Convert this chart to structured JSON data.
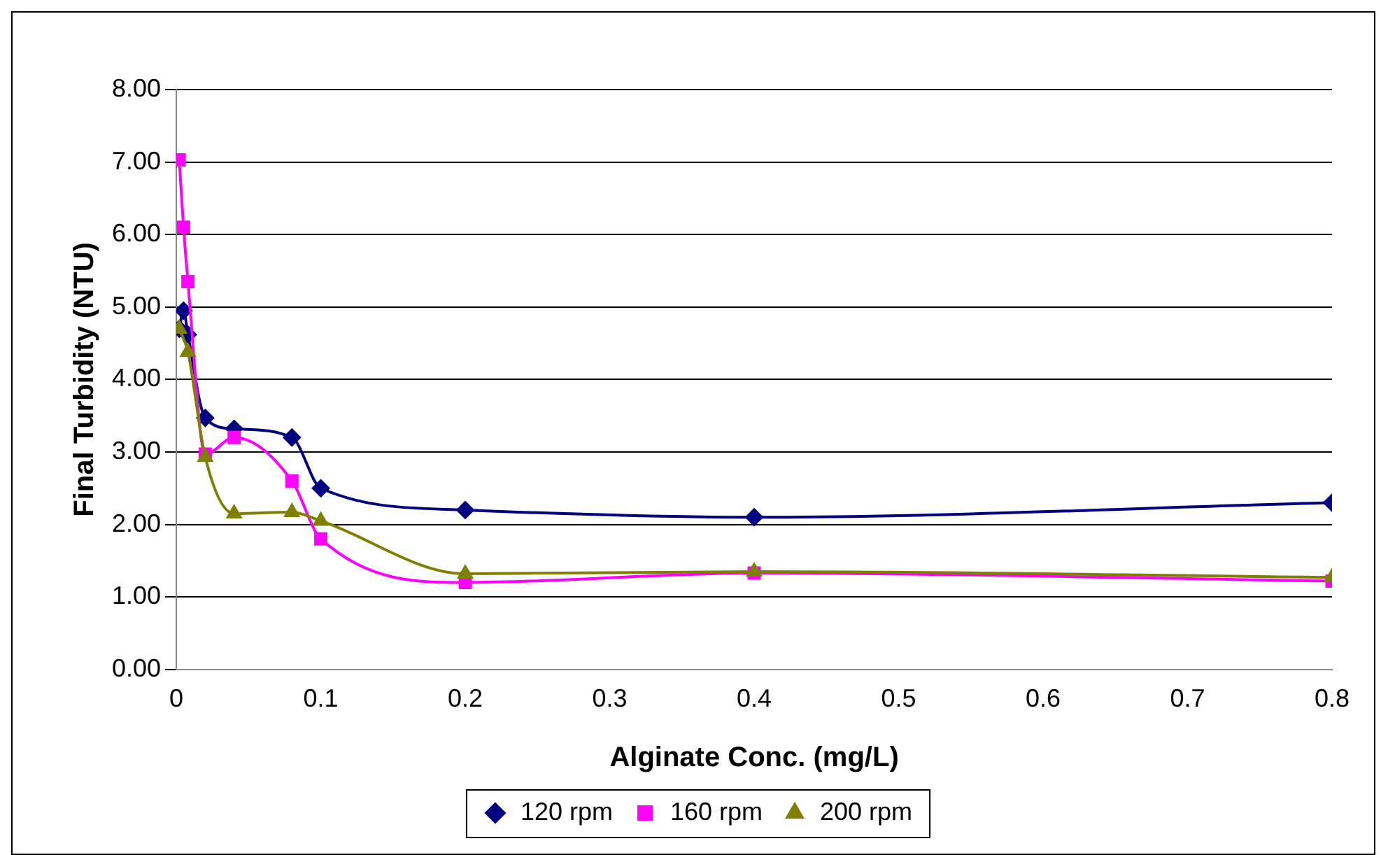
{
  "chart_data": {
    "type": "line",
    "xlabel": "Alginate Conc. (mg/L)",
    "ylabel": "Final Turbidity (NTU)",
    "xlim": [
      0,
      0.8
    ],
    "xticks": [
      0,
      0.1,
      0.2,
      0.3,
      0.4,
      0.5,
      0.6,
      0.7,
      0.8
    ],
    "ylim": [
      0,
      8
    ],
    "yticks": [
      {
        "value": 0,
        "label": "0.00"
      },
      {
        "value": 1,
        "label": "1.00"
      },
      {
        "value": 2,
        "label": "2.00"
      },
      {
        "value": 3,
        "label": "3.00"
      },
      {
        "value": 4,
        "label": "4.00"
      },
      {
        "value": 5,
        "label": "5.00"
      },
      {
        "value": 6,
        "label": "6.00"
      },
      {
        "value": 7,
        "label": "7.00"
      },
      {
        "value": 8,
        "label": "8.00"
      }
    ],
    "grid": "y",
    "legend": "bottom",
    "series": [
      {
        "name": "120 rpm",
        "color": "#000080",
        "marker": "diamond",
        "x": [
          0.002,
          0.005,
          0.008,
          0.02,
          0.04,
          0.08,
          0.1,
          0.2,
          0.4,
          0.8
        ],
        "values": [
          4.7,
          4.95,
          4.62,
          3.47,
          3.32,
          3.2,
          2.5,
          2.2,
          2.1,
          2.3
        ]
      },
      {
        "name": "160 rpm",
        "color": "#ff00ff",
        "marker": "square",
        "x": [
          0.002,
          0.005,
          0.008,
          0.02,
          0.04,
          0.08,
          0.1,
          0.2,
          0.4,
          0.8
        ],
        "values": [
          7.03,
          6.1,
          5.35,
          2.97,
          3.2,
          2.6,
          1.8,
          1.2,
          1.33,
          1.22
        ]
      },
      {
        "name": "200 rpm",
        "color": "#808000",
        "marker": "triangle",
        "x": [
          0.002,
          0.008,
          0.02,
          0.04,
          0.08,
          0.1,
          0.2,
          0.4,
          0.8
        ],
        "values": [
          4.7,
          4.38,
          2.93,
          2.15,
          2.17,
          2.05,
          1.32,
          1.35,
          1.27
        ]
      }
    ]
  }
}
